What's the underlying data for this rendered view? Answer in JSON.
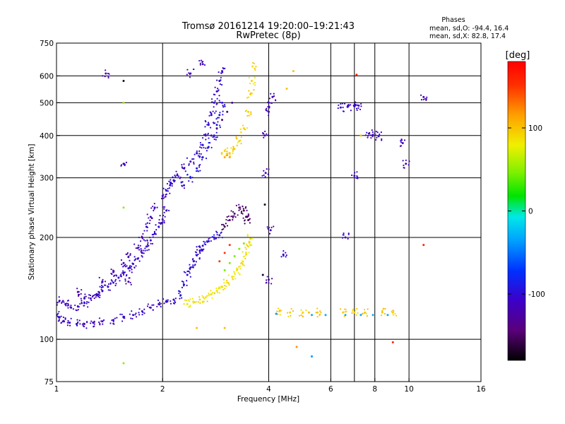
{
  "chart_data": {
    "type": "scatter",
    "title": "Tromsø 20161214 19:20:00–19:21:43",
    "subtitle": "RwPretec (8p)",
    "stats": {
      "heading": "Phases",
      "line_o": "mean, sd,O: -94.4, 16.4",
      "line_x": "mean, sd,X: 82.8, 17.4"
    },
    "xlabel": "Frequency [MHz]",
    "ylabel": "Stationary phase Virtual Height [km]",
    "x_scale": "log2",
    "y_scale": "log",
    "xlim": [
      1,
      16
    ],
    "ylim": [
      75,
      750
    ],
    "x_ticks": [
      {
        "value": 1,
        "label": "1"
      },
      {
        "value": 2,
        "label": "2"
      },
      {
        "value": 4,
        "label": "4"
      },
      {
        "value": 6,
        "label": "6"
      },
      {
        "value": 8,
        "label": "8"
      },
      {
        "value": 10,
        "label": "10"
      },
      {
        "value": 16,
        "label": "16"
      }
    ],
    "y_ticks": [
      {
        "value": 75,
        "label": "75"
      },
      {
        "value": 100,
        "label": "100"
      },
      {
        "value": 200,
        "label": "200"
      },
      {
        "value": 300,
        "label": "300"
      },
      {
        "value": 400,
        "label": "400"
      },
      {
        "value": 500,
        "label": "500"
      },
      {
        "value": 600,
        "label": "600"
      },
      {
        "value": 750,
        "label": "750"
      }
    ],
    "x_grid": [
      2,
      4,
      6,
      7,
      8,
      10
    ],
    "y_grid": [
      100,
      200,
      300,
      400,
      500,
      600
    ],
    "colorbar": {
      "label": "[deg]",
      "range": [
        -180,
        180
      ],
      "ticks": [
        {
          "value": 100,
          "label": "100"
        },
        {
          "value": 0,
          "label": "0"
        },
        {
          "value": -100,
          "label": "-100"
        }
      ]
    },
    "series": [
      {
        "trace": "F-low-start",
        "phase": -110,
        "points": [
          [
            1.0,
            118
          ],
          [
            1.02,
            116
          ],
          [
            1.05,
            113
          ],
          [
            1.09,
            112
          ],
          [
            1.14,
            111
          ],
          [
            1.2,
            111
          ],
          [
            1.27,
            112
          ],
          [
            1.35,
            113
          ],
          [
            1.45,
            114
          ],
          [
            1.55,
            116
          ],
          [
            1.65,
            118
          ],
          [
            1.75,
            121
          ],
          [
            1.85,
            124
          ],
          [
            1.95,
            127
          ],
          [
            2.05,
            129
          ],
          [
            2.15,
            131
          ]
        ]
      },
      {
        "trace": "F-low-band",
        "phase": -108,
        "points": [
          [
            1.02,
            130
          ],
          [
            1.06,
            127
          ],
          [
            1.1,
            124
          ],
          [
            1.15,
            125
          ],
          [
            1.2,
            128
          ],
          [
            1.25,
            132
          ],
          [
            1.3,
            135
          ],
          [
            1.35,
            139
          ],
          [
            1.4,
            143
          ],
          [
            1.45,
            147
          ],
          [
            1.5,
            152
          ],
          [
            1.55,
            157
          ],
          [
            1.6,
            162
          ],
          [
            1.65,
            167
          ],
          [
            1.7,
            173
          ],
          [
            1.75,
            180
          ],
          [
            1.8,
            188
          ],
          [
            1.85,
            196
          ],
          [
            1.9,
            205
          ],
          [
            1.95,
            215
          ],
          [
            2.0,
            226
          ],
          [
            2.05,
            240
          ]
        ]
      },
      {
        "trace": "F-low-upper",
        "phase": -112,
        "points": [
          [
            1.35,
            148
          ],
          [
            1.45,
            158
          ],
          [
            1.55,
            168
          ],
          [
            1.6,
            175
          ],
          [
            1.7,
            186
          ],
          [
            1.75,
            200
          ],
          [
            1.8,
            215
          ],
          [
            1.85,
            230
          ],
          [
            1.9,
            245
          ],
          [
            2.0,
            265
          ]
        ]
      },
      {
        "trace": "F1-second",
        "phase": -100,
        "points": [
          [
            2.25,
            135
          ],
          [
            2.3,
            145
          ],
          [
            2.35,
            155
          ],
          [
            2.4,
            163
          ],
          [
            2.45,
            170
          ],
          [
            2.5,
            177
          ],
          [
            2.55,
            183
          ],
          [
            2.6,
            189
          ],
          [
            2.7,
            195
          ],
          [
            2.8,
            200
          ],
          [
            2.9,
            203
          ]
        ]
      },
      {
        "trace": "F1-x",
        "phase": 85,
        "points": [
          [
            2.35,
            127
          ],
          [
            2.45,
            129
          ],
          [
            2.55,
            131
          ],
          [
            2.65,
            133
          ],
          [
            2.75,
            136
          ],
          [
            2.85,
            139
          ],
          [
            2.95,
            143
          ],
          [
            3.05,
            147
          ],
          [
            3.15,
            153
          ],
          [
            3.25,
            160
          ],
          [
            3.35,
            168
          ],
          [
            3.45,
            178
          ],
          [
            3.5,
            188
          ],
          [
            3.55,
            198
          ]
        ]
      },
      {
        "trace": "F1-x-mid",
        "phase": 45,
        "points": [
          [
            3.0,
            160
          ],
          [
            3.1,
            168
          ],
          [
            3.2,
            176
          ],
          [
            3.3,
            185
          ],
          [
            3.4,
            192
          ]
        ]
      },
      {
        "trace": "F1-cusp",
        "phase": -150,
        "points": [
          [
            3.0,
            215
          ],
          [
            3.1,
            225
          ],
          [
            3.2,
            235
          ],
          [
            3.3,
            245
          ],
          [
            3.4,
            240
          ],
          [
            3.45,
            230
          ],
          [
            3.5,
            225
          ]
        ]
      },
      {
        "trace": "F1-cusp-red",
        "phase": 150,
        "points": [
          [
            2.9,
            170
          ],
          [
            3.0,
            180
          ],
          [
            3.1,
            190
          ]
        ]
      },
      {
        "trace": "F2-o",
        "phase": -105,
        "points": [
          [
            2.05,
            275
          ],
          [
            2.1,
            285
          ],
          [
            2.15,
            295
          ],
          [
            2.2,
            305
          ],
          [
            2.3,
            320
          ],
          [
            2.4,
            335
          ],
          [
            2.5,
            355
          ],
          [
            2.6,
            375
          ],
          [
            2.65,
            400
          ],
          [
            2.7,
            430
          ],
          [
            2.75,
            460
          ],
          [
            2.8,
            500
          ],
          [
            2.85,
            540
          ],
          [
            2.9,
            580
          ],
          [
            2.95,
            620
          ]
        ]
      },
      {
        "trace": "F2-o-b",
        "phase": -95,
        "points": [
          [
            2.3,
            285
          ],
          [
            2.4,
            300
          ],
          [
            2.5,
            320
          ],
          [
            2.6,
            345
          ],
          [
            2.7,
            370
          ],
          [
            2.8,
            400
          ],
          [
            2.85,
            430
          ],
          [
            2.9,
            460
          ],
          [
            2.95,
            500
          ]
        ]
      },
      {
        "trace": "F2-o-purple",
        "phase": -135,
        "points": [
          [
            2.75,
            400
          ],
          [
            2.85,
            420
          ],
          [
            2.95,
            445
          ],
          [
            3.05,
            470
          ],
          [
            3.15,
            500
          ]
        ]
      },
      {
        "trace": "F2-x",
        "phase": 92,
        "points": [
          [
            3.0,
            360
          ],
          [
            3.1,
            355
          ],
          [
            3.2,
            365
          ],
          [
            3.3,
            385
          ],
          [
            3.4,
            420
          ],
          [
            3.5,
            470
          ],
          [
            3.55,
            530
          ],
          [
            3.58,
            580
          ],
          [
            3.6,
            640
          ]
        ]
      },
      {
        "trace": "F2-x-lower",
        "phase": 110,
        "points": [
          [
            3.0,
            345
          ],
          [
            3.05,
            350
          ],
          [
            3.1,
            345
          ]
        ]
      },
      {
        "trace": "Es-x",
        "phase": 95,
        "points": [
          [
            4.3,
            121
          ],
          [
            4.6,
            120
          ],
          [
            5.0,
            120
          ],
          [
            5.5,
            120
          ],
          [
            6.5,
            120
          ],
          [
            7.0,
            120
          ],
          [
            7.5,
            120
          ],
          [
            8.4,
            120
          ],
          [
            9.0,
            120
          ]
        ]
      },
      {
        "trace": "Es-cyan",
        "phase": -30,
        "points": [
          [
            5.3,
            118
          ],
          [
            5.8,
            118
          ],
          [
            6.6,
            118
          ],
          [
            7.3,
            118
          ],
          [
            7.9,
            118
          ],
          [
            8.7,
            118
          ]
        ]
      },
      {
        "trace": "Es-o",
        "phase": -110,
        "points": [
          [
            6.4,
            484
          ],
          [
            6.7,
            486
          ],
          [
            7.0,
            488
          ],
          [
            7.2,
            490
          ],
          [
            7.7,
            405
          ],
          [
            7.9,
            402
          ],
          [
            8.2,
            398
          ],
          [
            7.0,
            304
          ],
          [
            6.6,
            200
          ],
          [
            4.4,
            178
          ]
        ]
      },
      {
        "trace": "scatter-blue",
        "phase": -115,
        "points": [
          [
            1.38,
            610
          ],
          [
            1.55,
            330
          ],
          [
            2.6,
            650
          ],
          [
            2.4,
            610
          ],
          [
            1.2,
            132
          ],
          [
            1.15,
            138
          ],
          [
            1.3,
            136
          ],
          [
            1.6,
            148
          ],
          [
            4.0,
            470
          ],
          [
            4.0,
            500
          ],
          [
            3.9,
            400
          ],
          [
            4.1,
            520
          ],
          [
            3.92,
            310
          ],
          [
            4.05,
            210
          ],
          [
            9.6,
            380
          ],
          [
            9.8,
            330
          ],
          [
            11.0,
            520
          ],
          [
            4.0,
            150
          ]
        ]
      },
      {
        "trace": "scatter-magenta",
        "phase": -170,
        "points": [
          [
            1.55,
            580
          ],
          [
            3.9,
            250
          ],
          [
            3.85,
            155
          ]
        ]
      },
      {
        "trace": "scatter-red",
        "phase": 160,
        "points": [
          [
            7.1,
            605
          ],
          [
            11.0,
            190
          ],
          [
            9.0,
            98
          ]
        ]
      },
      {
        "trace": "scatter-yellow",
        "phase": 100,
        "points": [
          [
            4.7,
            620
          ],
          [
            7.3,
            400
          ],
          [
            4.5,
            550
          ],
          [
            2.5,
            108
          ],
          [
            3.0,
            108
          ],
          [
            5.2,
            120
          ]
        ]
      },
      {
        "trace": "scatter-green",
        "phase": 50,
        "points": [
          [
            1.55,
            500
          ],
          [
            1.55,
            245
          ],
          [
            1.55,
            85
          ]
        ]
      },
      {
        "trace": "scatter-cyan-lo",
        "phase": -40,
        "points": [
          [
            5.3,
            89
          ],
          [
            4.2,
            119
          ]
        ]
      },
      {
        "trace": "scatter-orange",
        "phase": 120,
        "points": [
          [
            4.8,
            95
          ]
        ]
      }
    ]
  }
}
